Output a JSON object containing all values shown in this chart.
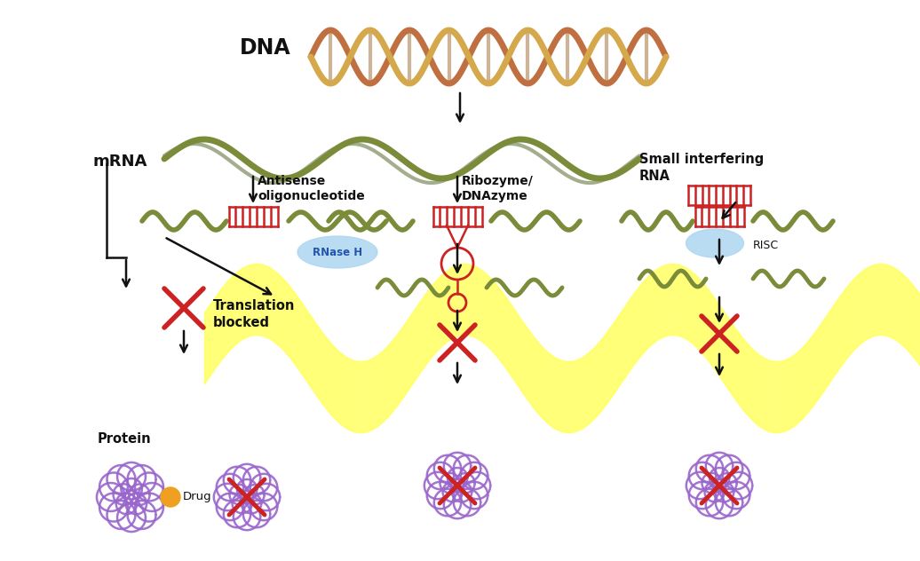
{
  "bg_color": "#ffffff",
  "olive_green": "#7a8c3a",
  "dark_olive": "#4a5e1e",
  "red_color": "#cc2222",
  "yellow_bg": "#ffff55",
  "blue_light": "#aed6f1",
  "purple_protein": "#9966cc",
  "labels": {
    "dna": "DNA",
    "mrna": "mRNA",
    "antisense": "Antisense\noligonucleotide",
    "ribozyme": "Ribozyme/\nDNAzyme",
    "small_interfering": "Small interfering\nRNA",
    "rnase_h": "RNase H",
    "risc": "RISC",
    "translation_blocked": "Translation\nblocked",
    "protein": "Protein",
    "drug": "Drug"
  },
  "figsize": [
    10.36,
    6.32
  ],
  "dpi": 100
}
